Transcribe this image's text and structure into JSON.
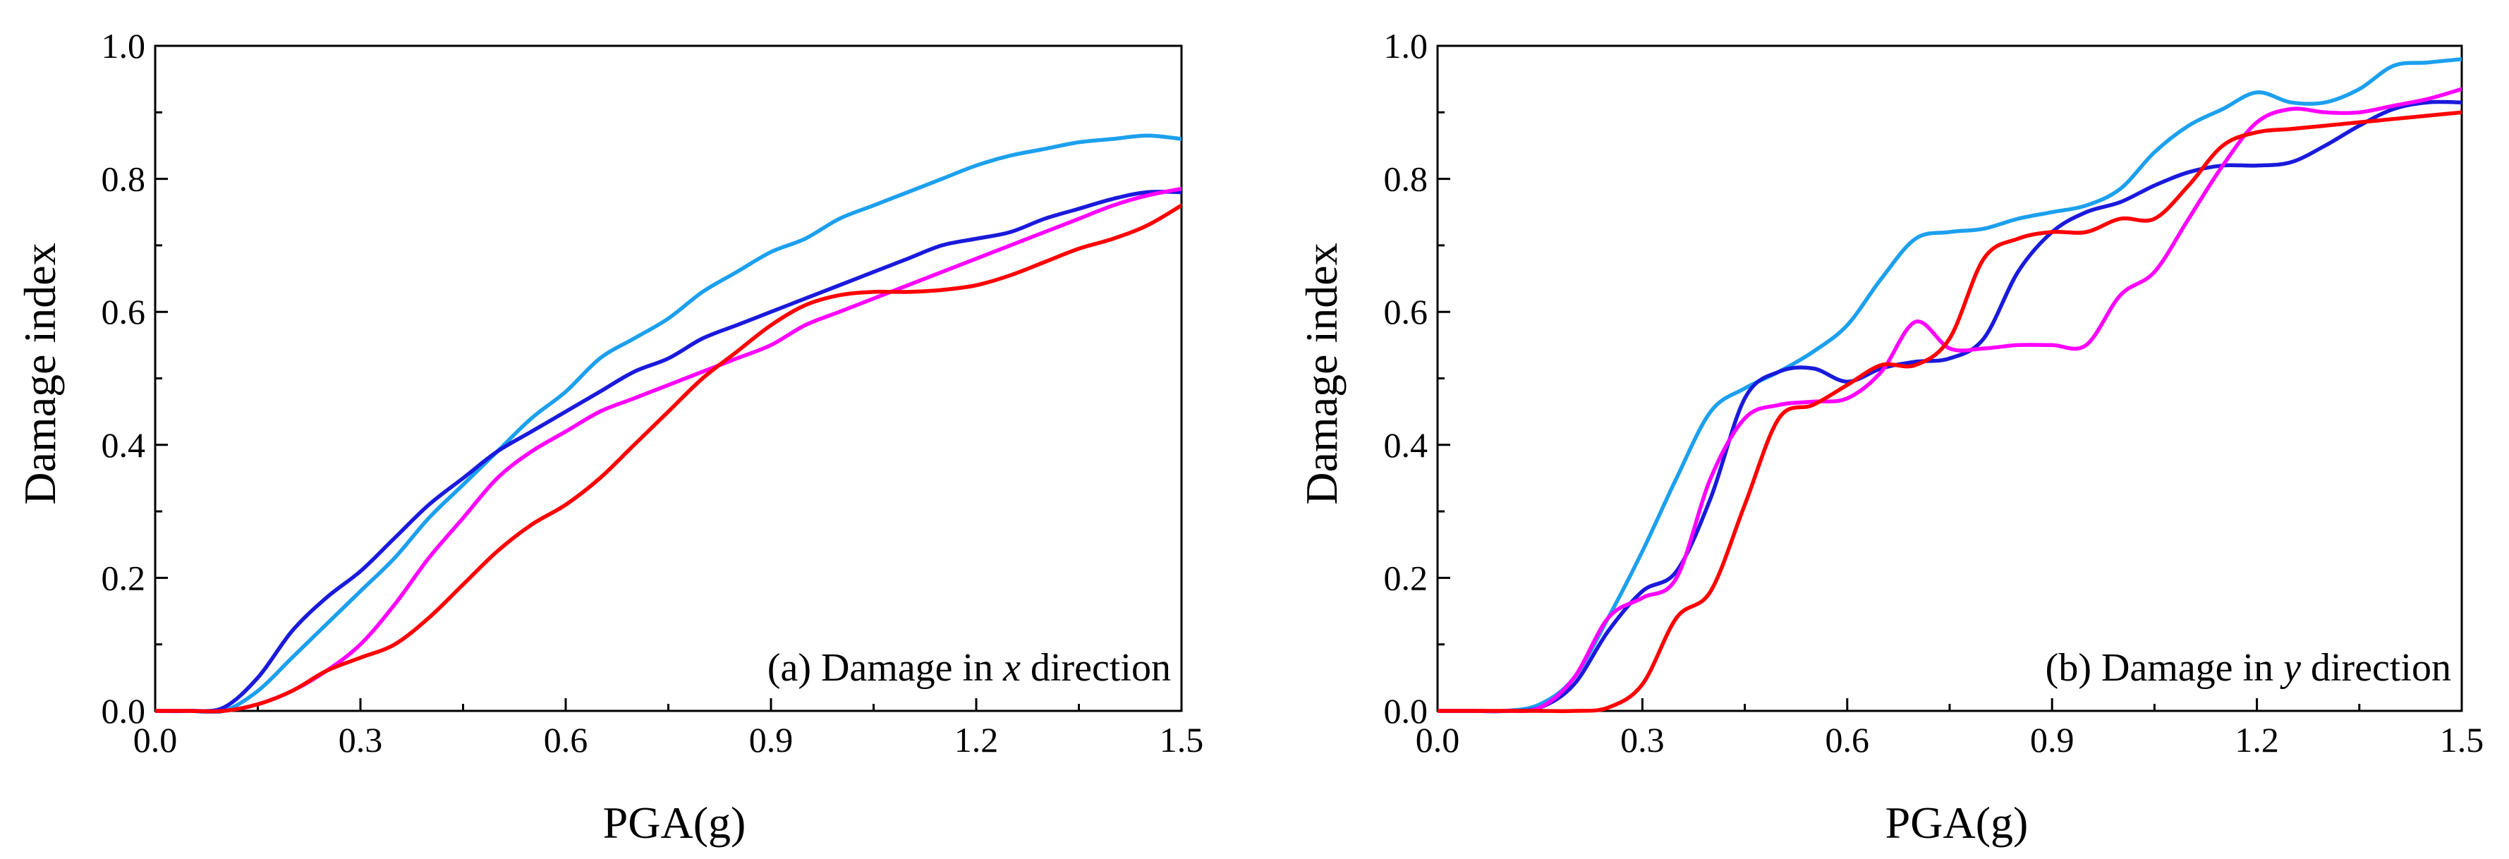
{
  "colors": {
    "red": "#ff0000",
    "blue": "#1a1adc",
    "lightblue": "#1ca0ee",
    "magenta": "#ff00ff"
  },
  "chart_data": [
    {
      "type": "line",
      "caption_prefix": "(a) Damage in ",
      "caption_var": "x",
      "caption_suffix": " direction",
      "xlabel": "PGA(g)",
      "ylabel": "Damage index",
      "xlim": [
        0.0,
        1.5
      ],
      "ylim": [
        0.0,
        1.0
      ],
      "xticks": [
        "0.0",
        "0.3",
        "0.6",
        "0.9",
        "1.2",
        "1.5"
      ],
      "yticks": [
        "0.0",
        "0.2",
        "0.4",
        "0.6",
        "0.8",
        "1.0"
      ],
      "x": [
        0.0,
        0.05,
        0.1,
        0.15,
        0.2,
        0.25,
        0.3,
        0.35,
        0.4,
        0.45,
        0.5,
        0.55,
        0.6,
        0.65,
        0.7,
        0.75,
        0.8,
        0.85,
        0.9,
        0.95,
        1.0,
        1.05,
        1.1,
        1.15,
        1.2,
        1.25,
        1.3,
        1.35,
        1.4,
        1.45,
        1.5
      ],
      "series": [
        {
          "name": "lightblue",
          "color": "#1ca0ee",
          "values": [
            0.0,
            0.0,
            0.0,
            0.03,
            0.08,
            0.13,
            0.18,
            0.23,
            0.29,
            0.34,
            0.39,
            0.44,
            0.48,
            0.53,
            0.56,
            0.59,
            0.63,
            0.66,
            0.69,
            0.71,
            0.74,
            0.76,
            0.78,
            0.8,
            0.82,
            0.835,
            0.845,
            0.855,
            0.86,
            0.865,
            0.86
          ]
        },
        {
          "name": "blue",
          "color": "#1a1adc",
          "values": [
            0.0,
            0.0,
            0.005,
            0.05,
            0.12,
            0.17,
            0.21,
            0.26,
            0.31,
            0.35,
            0.39,
            0.42,
            0.45,
            0.48,
            0.51,
            0.53,
            0.56,
            0.58,
            0.6,
            0.62,
            0.64,
            0.66,
            0.68,
            0.7,
            0.71,
            0.72,
            0.74,
            0.755,
            0.77,
            0.78,
            0.78
          ]
        },
        {
          "name": "magenta",
          "color": "#ff00ff",
          "values": [
            0.0,
            0.0,
            0.0,
            0.01,
            0.03,
            0.06,
            0.1,
            0.16,
            0.23,
            0.29,
            0.35,
            0.39,
            0.42,
            0.45,
            0.47,
            0.49,
            0.51,
            0.53,
            0.55,
            0.58,
            0.6,
            0.62,
            0.64,
            0.66,
            0.68,
            0.7,
            0.72,
            0.74,
            0.76,
            0.775,
            0.785
          ]
        },
        {
          "name": "red",
          "color": "#ff0000",
          "values": [
            0.0,
            0.0,
            0.0,
            0.01,
            0.03,
            0.06,
            0.08,
            0.1,
            0.14,
            0.19,
            0.24,
            0.28,
            0.31,
            0.35,
            0.4,
            0.45,
            0.5,
            0.54,
            0.58,
            0.61,
            0.625,
            0.63,
            0.63,
            0.633,
            0.64,
            0.655,
            0.675,
            0.695,
            0.71,
            0.73,
            0.76
          ]
        }
      ]
    },
    {
      "type": "line",
      "caption_prefix": "(b) Damage in ",
      "caption_var": "y",
      "caption_suffix": " direction",
      "xlabel": "PGA(g)",
      "ylabel": "Damage index",
      "xlim": [
        0.0,
        1.5
      ],
      "ylim": [
        0.0,
        1.0
      ],
      "xticks": [
        "0.0",
        "0.3",
        "0.6",
        "0.9",
        "1.2",
        "1.5"
      ],
      "yticks": [
        "0.0",
        "0.2",
        "0.4",
        "0.6",
        "0.8",
        "1.0"
      ],
      "x": [
        0.0,
        0.05,
        0.1,
        0.15,
        0.2,
        0.25,
        0.3,
        0.35,
        0.4,
        0.45,
        0.5,
        0.55,
        0.6,
        0.65,
        0.7,
        0.75,
        0.8,
        0.85,
        0.9,
        0.95,
        1.0,
        1.05,
        1.1,
        1.15,
        1.2,
        1.25,
        1.3,
        1.35,
        1.4,
        1.45,
        1.5
      ],
      "series": [
        {
          "name": "lightblue",
          "color": "#1ca0ee",
          "values": [
            0.0,
            0.0,
            0.0,
            0.01,
            0.05,
            0.14,
            0.24,
            0.35,
            0.45,
            0.485,
            0.51,
            0.54,
            0.58,
            0.65,
            0.71,
            0.72,
            0.725,
            0.74,
            0.75,
            0.76,
            0.785,
            0.84,
            0.88,
            0.905,
            0.93,
            0.915,
            0.915,
            0.935,
            0.97,
            0.975,
            0.98
          ]
        },
        {
          "name": "blue",
          "color": "#1a1adc",
          "values": [
            0.0,
            0.0,
            0.0,
            0.005,
            0.04,
            0.12,
            0.18,
            0.21,
            0.32,
            0.47,
            0.51,
            0.515,
            0.495,
            0.515,
            0.525,
            0.53,
            0.56,
            0.66,
            0.72,
            0.75,
            0.765,
            0.79,
            0.81,
            0.82,
            0.82,
            0.825,
            0.85,
            0.88,
            0.905,
            0.915,
            0.915
          ]
        },
        {
          "name": "magenta",
          "color": "#ff00ff",
          "values": [
            0.0,
            0.0,
            0.0,
            0.005,
            0.05,
            0.14,
            0.17,
            0.2,
            0.35,
            0.44,
            0.46,
            0.465,
            0.47,
            0.51,
            0.585,
            0.545,
            0.545,
            0.55,
            0.55,
            0.55,
            0.625,
            0.66,
            0.74,
            0.82,
            0.885,
            0.905,
            0.9,
            0.9,
            0.91,
            0.92,
            0.935
          ]
        },
        {
          "name": "red",
          "color": "#ff0000",
          "values": [
            0.0,
            0.0,
            0.0,
            0.0,
            0.0,
            0.005,
            0.04,
            0.14,
            0.18,
            0.31,
            0.44,
            0.46,
            0.49,
            0.52,
            0.52,
            0.56,
            0.68,
            0.71,
            0.72,
            0.72,
            0.74,
            0.74,
            0.79,
            0.85,
            0.87,
            0.875,
            0.88,
            0.885,
            0.89,
            0.895,
            0.9
          ]
        }
      ]
    }
  ]
}
